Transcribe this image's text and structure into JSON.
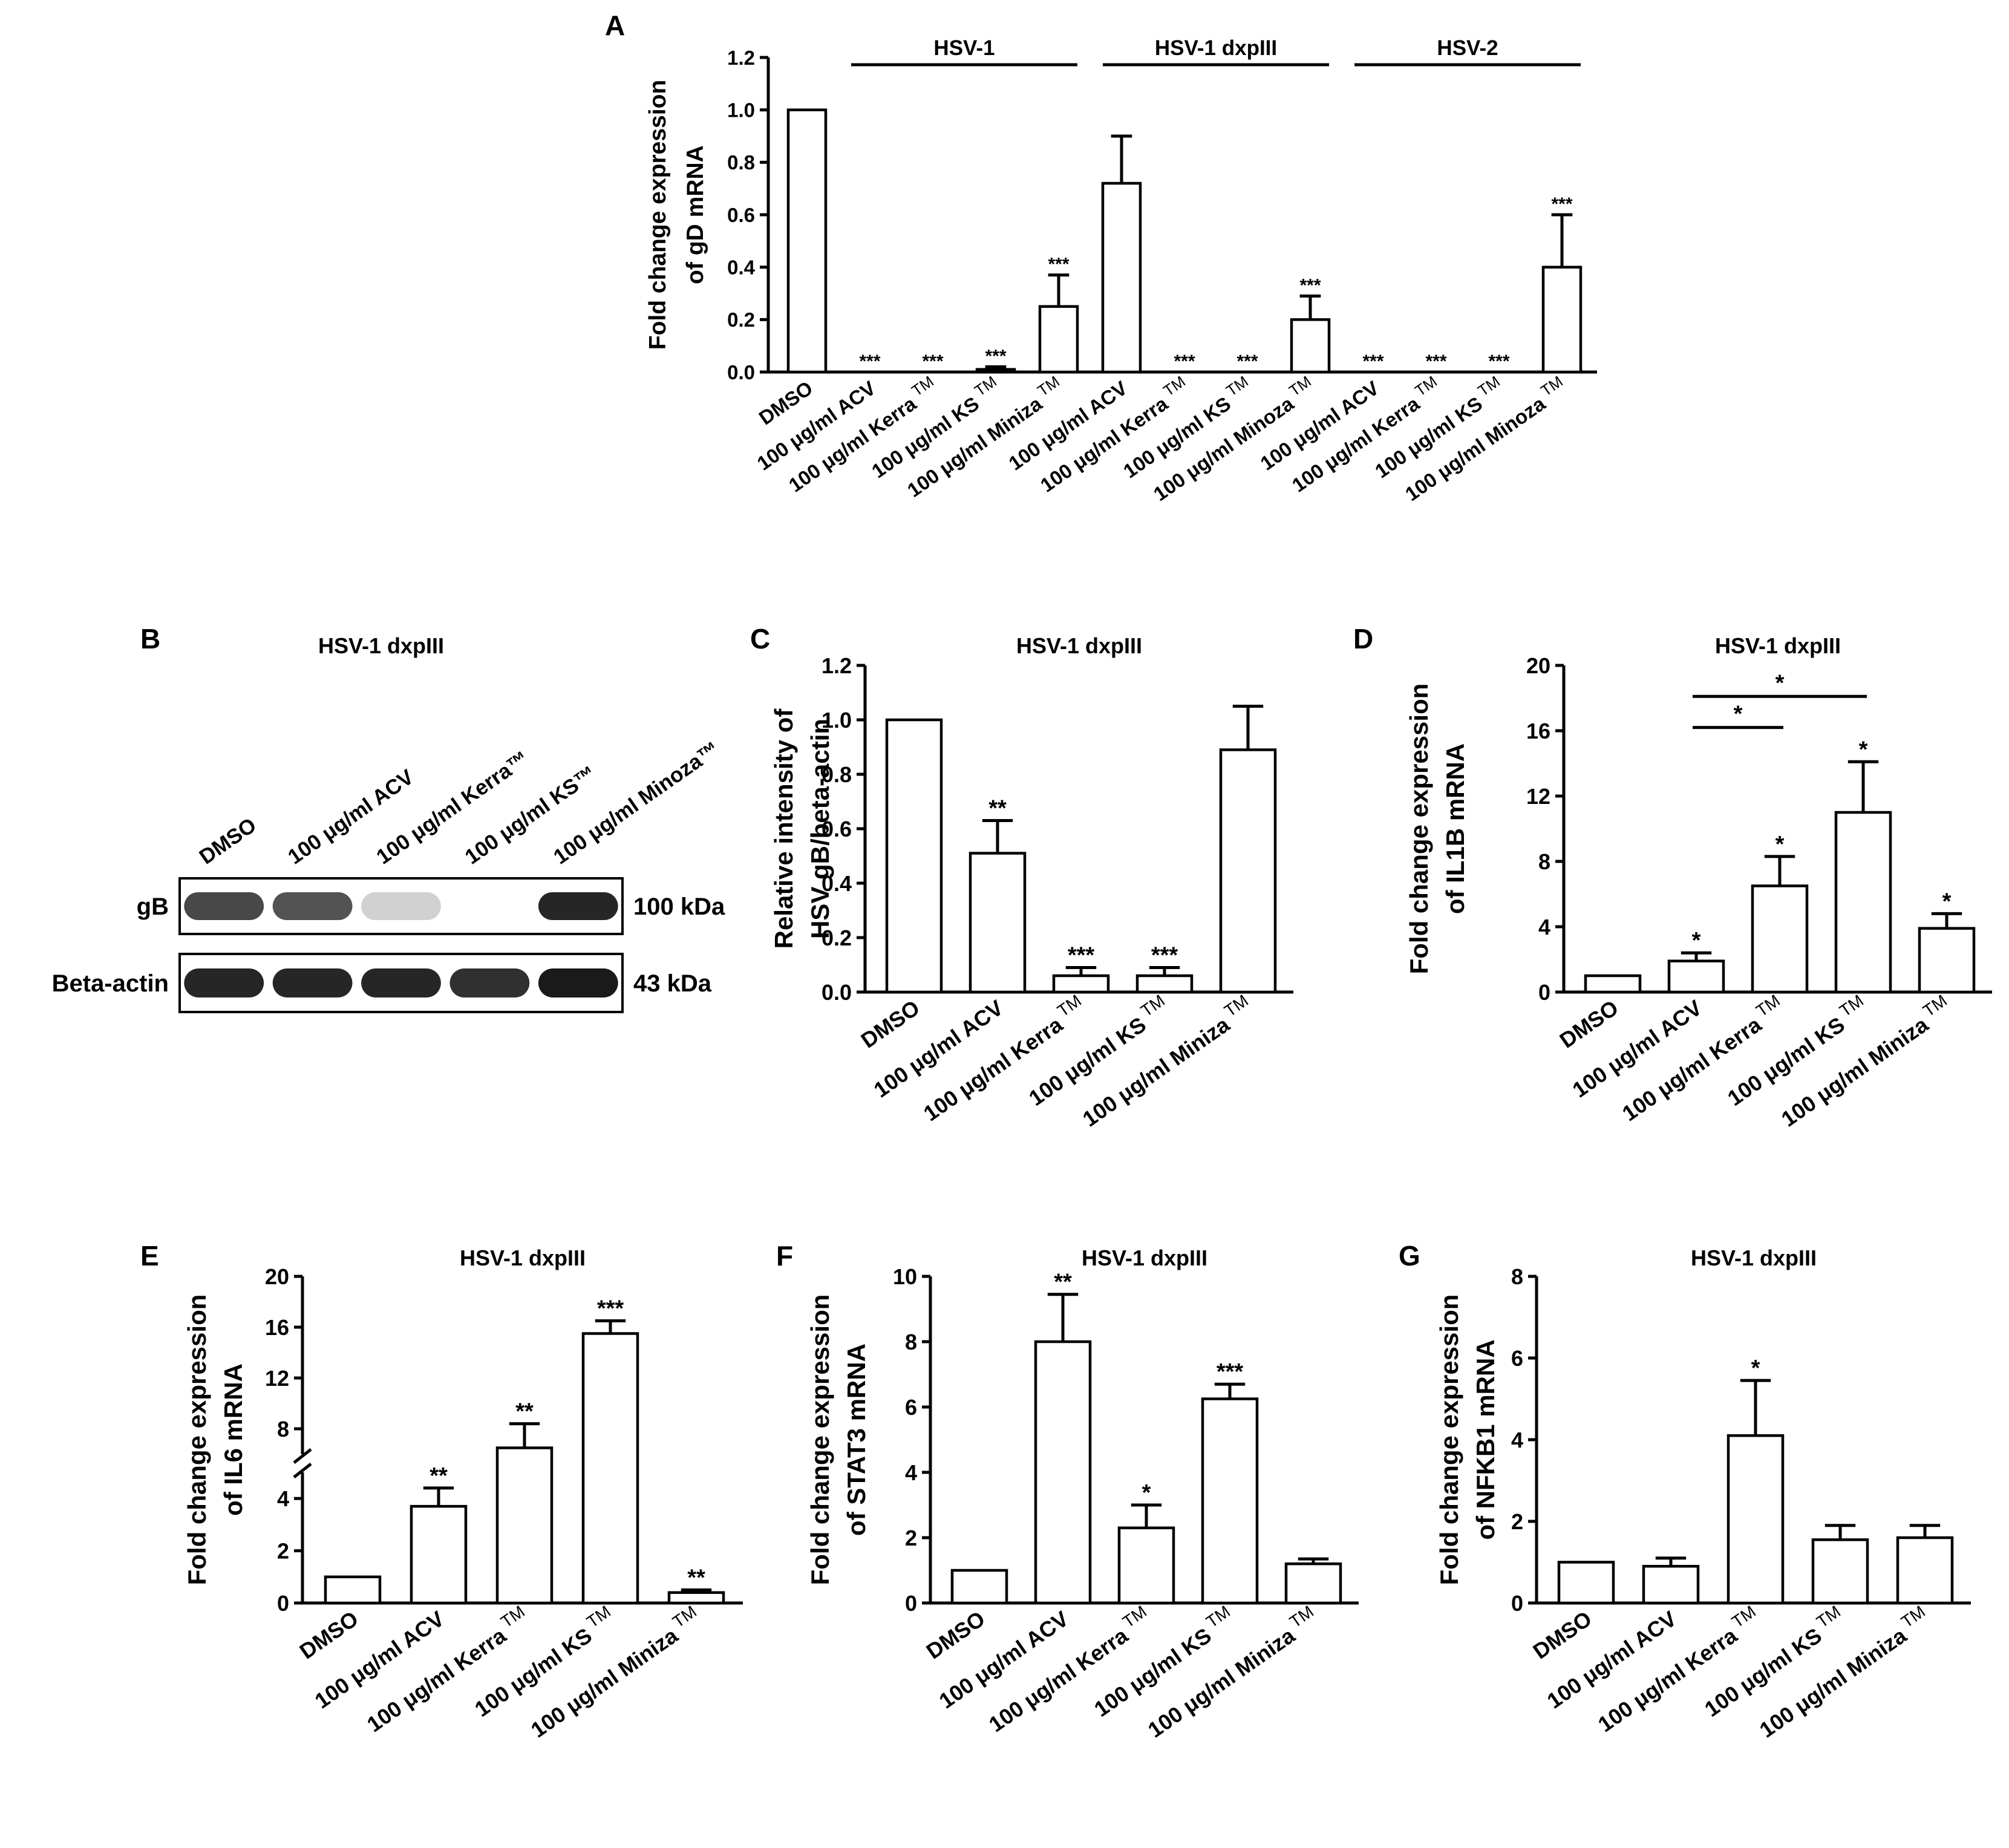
{
  "panel_letters": {
    "A": "A",
    "B": "B",
    "C": "C",
    "D": "D",
    "E": "E",
    "F": "F",
    "G": "G"
  },
  "blot": {
    "title": "HSV-1 dxpIII",
    "lanes": [
      "DMSO",
      "100 μg/ml ACV",
      "100 μg/ml Kerra™",
      "100 μg/ml KS™",
      "100 μg/ml Minoza™"
    ],
    "rows": [
      {
        "label": "gB",
        "kda": "100 kDa",
        "intensity": [
          0.8,
          0.75,
          0.2,
          0.02,
          0.95
        ]
      },
      {
        "label": "Beta-actin",
        "kda": "43 kDa",
        "intensity": [
          0.95,
          0.95,
          0.95,
          0.9,
          1.0
        ]
      }
    ]
  },
  "chart_data": [
    {
      "panel": "A",
      "type": "bar",
      "title": "",
      "ylabel": [
        "Fold change expression",
        "of gD mRNA"
      ],
      "ylim": [
        0,
        1.2
      ],
      "yticks": [
        "0.0",
        "0.2",
        "0.4",
        "0.6",
        "0.8",
        "1.0",
        "1.2"
      ],
      "categories": [
        "DMSO",
        "100 μg/ml ACV",
        "100 μg/ml Kerra",
        "100 μg/ml KS",
        "100 μg/ml Miniza",
        "100 μg/ml ACV",
        "100 μg/ml Kerra",
        "100 μg/ml KS",
        "100 μg/ml Minoza",
        "100 μg/ml ACV",
        "100 μg/ml Kerra",
        "100 μg/ml KS",
        "100 μg/ml Minoza"
      ],
      "tm": [
        "",
        "",
        "TM",
        "TM",
        "TM",
        "",
        "TM",
        "TM",
        "TM",
        "",
        "TM",
        "TM",
        "TM"
      ],
      "values": [
        1.0,
        0.0,
        0.0,
        0.01,
        0.25,
        0.72,
        0.0,
        0.0,
        0.2,
        0.0,
        0.0,
        0.0,
        0.4
      ],
      "errors": [
        0,
        0,
        0,
        0.01,
        0.12,
        0.18,
        0,
        0,
        0.09,
        0,
        0,
        0,
        0.2
      ],
      "significance": [
        "",
        "***",
        "***",
        "***",
        "***",
        "",
        "***",
        "***",
        "***",
        "***",
        "***",
        "***",
        "***"
      ],
      "groups": [
        {
          "label": "HSV-1",
          "from": 1,
          "to": 4
        },
        {
          "label": "HSV-1 dxpIII",
          "from": 5,
          "to": 8
        },
        {
          "label": "HSV-2",
          "from": 9,
          "to": 12
        }
      ],
      "brackets": []
    },
    {
      "panel": "C",
      "type": "bar",
      "title": "HSV-1 dxpIII",
      "ylabel": [
        "Relative intensity of",
        "HSV gB/beta-actin"
      ],
      "ylim": [
        0,
        1.2
      ],
      "yticks": [
        "0.0",
        "0.2",
        "0.4",
        "0.6",
        "0.8",
        "1.0",
        "1.2"
      ],
      "categories": [
        "DMSO",
        "100 μg/ml ACV",
        "100 μg/ml Kerra",
        "100 μg/ml KS",
        "100 μg/ml Miniza"
      ],
      "tm": [
        "",
        "",
        "TM",
        "TM",
        "TM"
      ],
      "values": [
        1.0,
        0.51,
        0.06,
        0.06,
        0.89
      ],
      "errors": [
        0,
        0.12,
        0.03,
        0.03,
        0.16
      ],
      "significance": [
        "",
        "**",
        "***",
        "***",
        ""
      ],
      "groups": [],
      "brackets": []
    },
    {
      "panel": "D",
      "type": "bar",
      "title": "HSV-1 dxpIII",
      "ylabel": [
        "Fold change expression",
        "of IL1B mRNA"
      ],
      "ylim": [
        0,
        20
      ],
      "yticks": [
        "0",
        "4",
        "8",
        "12",
        "16",
        "20"
      ],
      "categories": [
        "DMSO",
        "100 μg/ml ACV",
        "100 μg/ml Kerra",
        "100 μg/ml KS",
        "100 μg/ml Miniza"
      ],
      "tm": [
        "",
        "",
        "TM",
        "TM",
        "TM"
      ],
      "values": [
        1.0,
        1.9,
        6.5,
        11.0,
        3.9
      ],
      "errors": [
        0,
        0.5,
        1.8,
        3.1,
        0.9
      ],
      "significance": [
        "",
        "*",
        "*",
        "*",
        "*"
      ],
      "groups": [],
      "brackets": [
        {
          "from": 1,
          "to": 2,
          "label": "*",
          "y": 16.2
        },
        {
          "from": 1,
          "to": 3,
          "label": "*",
          "y": 18.1
        }
      ]
    },
    {
      "panel": "E",
      "type": "bar",
      "title": "HSV-1 dxpIII",
      "ylabel": [
        "Fold change expression",
        "of IL6 mRNA"
      ],
      "ylim": [
        0,
        20
      ],
      "yticks": [
        "0",
        "2",
        "4",
        "8",
        "12",
        "16",
        "20"
      ],
      "axis_break": [
        5,
        6
      ],
      "categories": [
        "DMSO",
        "100 μg/ml ACV",
        "100 μg/ml Kerra",
        "100 μg/ml KS",
        "100 μg/ml Miniza"
      ],
      "tm": [
        "",
        "",
        "TM",
        "TM",
        "TM"
      ],
      "values": [
        1.0,
        3.7,
        6.5,
        15.5,
        0.4
      ],
      "errors": [
        0,
        0.7,
        1.9,
        1.0,
        0.1
      ],
      "significance": [
        "",
        "**",
        "**",
        "***",
        "**"
      ],
      "groups": [],
      "brackets": []
    },
    {
      "panel": "F",
      "type": "bar",
      "title": "HSV-1 dxpIII",
      "ylabel": [
        "Fold change expression",
        "of STAT3 mRNA"
      ],
      "ylim": [
        0,
        10
      ],
      "yticks": [
        "0",
        "2",
        "4",
        "6",
        "8",
        "10"
      ],
      "categories": [
        "DMSO",
        "100 μg/ml ACV",
        "100 μg/ml Kerra",
        "100 μg/ml KS",
        "100 μg/ml Miniza"
      ],
      "tm": [
        "",
        "",
        "TM",
        "TM",
        "TM"
      ],
      "values": [
        1.0,
        8.0,
        2.3,
        6.25,
        1.2
      ],
      "errors": [
        0,
        1.45,
        0.7,
        0.45,
        0.15
      ],
      "significance": [
        "",
        "**",
        "*",
        "***",
        ""
      ],
      "groups": [],
      "brackets": []
    },
    {
      "panel": "G",
      "type": "bar",
      "title": "HSV-1 dxpIII",
      "ylabel": [
        "Fold change expression",
        "of NFKB1 mRNA"
      ],
      "ylim": [
        0,
        8
      ],
      "yticks": [
        "0",
        "2",
        "4",
        "6",
        "8"
      ],
      "categories": [
        "DMSO",
        "100 μg/ml ACV",
        "100 μg/ml Kerra",
        "100 μg/ml KS",
        "100 μg/ml Miniza"
      ],
      "tm": [
        "",
        "",
        "TM",
        "TM",
        "TM"
      ],
      "values": [
        1.0,
        0.9,
        4.1,
        1.55,
        1.6
      ],
      "errors": [
        0,
        0.2,
        1.35,
        0.35,
        0.3
      ],
      "significance": [
        "",
        "",
        "*",
        "",
        ""
      ],
      "groups": [],
      "brackets": []
    }
  ]
}
